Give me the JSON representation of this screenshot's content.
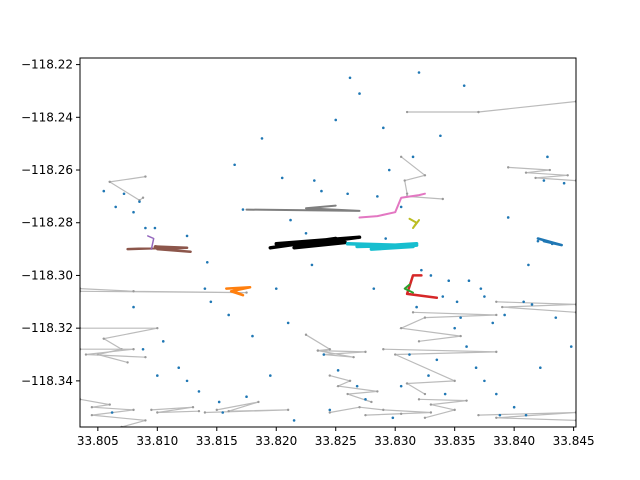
{
  "chart_data": {
    "type": "scatter",
    "title": "",
    "xlabel": "",
    "ylabel": "",
    "xlim": [
      33.8035,
      33.8452
    ],
    "ylim": [
      -118.3575,
      -118.2175
    ],
    "xticks": [
      33.805,
      33.81,
      33.815,
      33.82,
      33.825,
      33.83,
      33.835,
      33.84,
      33.845
    ],
    "xtick_labels": [
      "33.805",
      "33.810",
      "33.815",
      "33.820",
      "33.825",
      "33.830",
      "33.835",
      "33.840",
      "33.845"
    ],
    "yticks": [
      -118.22,
      -118.24,
      -118.26,
      -118.28,
      -118.3,
      -118.32,
      -118.34
    ],
    "ytick_labels": [
      "−118.22",
      "−118.24",
      "−118.26",
      "−118.28",
      "−118.30",
      "−118.32",
      "−118.34"
    ],
    "grid": false,
    "points": {
      "color": "#1f77b4",
      "x": [
        33.8055,
        33.8065,
        33.8072,
        33.808,
        33.8085,
        33.809,
        33.811,
        33.8125,
        33.814,
        33.8145,
        33.816,
        33.818,
        33.82,
        33.821,
        33.823,
        33.824,
        33.825,
        33.8262,
        33.827,
        33.8285,
        33.8295,
        33.8305,
        33.8315,
        33.8322,
        33.833,
        33.834,
        33.835,
        33.836,
        33.8368,
        33.8375,
        33.8385,
        33.84,
        33.841,
        33.842,
        33.8432,
        33.8442,
        33.808,
        33.8105,
        33.8125,
        33.8155,
        33.8175,
        33.8195,
        33.8215,
        33.8245,
        33.8275,
        33.8305,
        33.8335,
        33.8355,
        33.8375,
        33.8395,
        33.8425,
        33.81,
        33.8135,
        33.8165,
        33.8205,
        33.8225,
        33.826,
        33.829,
        33.832,
        33.8345,
        33.8372,
        33.8415,
        33.8435,
        33.8098,
        33.8142,
        33.8188,
        33.8238,
        33.8282,
        33.8312,
        33.8342,
        33.8362,
        33.8388,
        33.8408,
        33.8448,
        33.8062,
        33.8118,
        33.8172,
        33.8232,
        33.8268,
        33.8298,
        33.8328,
        33.8352,
        33.8382,
        33.8412,
        33.8428,
        33.8088,
        33.8152,
        33.8212,
        33.8252,
        33.8292,
        33.8318,
        33.8338,
        33.8358,
        33.8392,
        33.8422
      ],
      "y": [
        -118.268,
        -118.274,
        -118.269,
        -118.276,
        -118.272,
        -118.282,
        -118.29,
        -118.285,
        -118.305,
        -118.31,
        -118.315,
        -118.323,
        -118.305,
        -118.318,
        -118.296,
        -118.33,
        -118.241,
        -118.225,
        -118.231,
        -118.27,
        -118.26,
        -118.274,
        -118.255,
        -118.298,
        -118.3,
        -118.308,
        -118.32,
        -118.327,
        -118.335,
        -118.34,
        -118.345,
        -118.35,
        -118.353,
        -118.287,
        -118.288,
        -118.265,
        -118.312,
        -118.325,
        -118.34,
        -118.352,
        -118.346,
        -118.338,
        -118.355,
        -118.351,
        -118.347,
        -118.342,
        -118.332,
        -118.316,
        -118.308,
        -118.278,
        -118.264,
        -118.338,
        -118.344,
        -118.258,
        -118.263,
        -118.284,
        -118.269,
        -118.244,
        -118.223,
        -118.302,
        -118.305,
        -118.311,
        -118.316,
        -118.282,
        -118.295,
        -118.248,
        -118.268,
        -118.305,
        -118.33,
        -118.345,
        -118.302,
        -118.353,
        -118.31,
        -118.327,
        -118.352,
        -118.335,
        -118.275,
        -118.264,
        -118.342,
        -118.354,
        -118.338,
        -118.31,
        -118.318,
        -118.296,
        -118.255,
        -118.328,
        -118.348,
        -118.279,
        -118.336,
        -118.286,
        -118.312,
        -118.247,
        -118.228,
        -118.315,
        -118.335
      ]
    },
    "gray_lines": {
      "color": "#bbbbbb",
      "paths": [
        {
          "x": [
            33.809,
            33.806,
            33.8085,
            33.8088
          ],
          "y": [
            -118.2625,
            -118.2645,
            -118.2715,
            -118.2705
          ]
        },
        {
          "x": [
            33.8035,
            33.8175,
            33.808,
            33.8035
          ],
          "y": [
            -118.306,
            -118.3065,
            -118.306,
            -118.305
          ]
        },
        {
          "x": [
            33.8035,
            33.81,
            33.8055,
            33.807,
            33.805,
            33.8075
          ],
          "y": [
            -118.32,
            -118.32,
            -118.324,
            -118.328,
            -118.33,
            -118.333
          ]
        },
        {
          "x": [
            33.8035,
            33.808,
            33.804,
            33.809
          ],
          "y": [
            -118.328,
            -118.328,
            -118.33,
            -118.331
          ]
        },
        {
          "x": [
            33.8035,
            33.806,
            33.8045,
            33.808,
            33.8045,
            33.809,
            33.807
          ],
          "y": [
            -118.347,
            -118.349,
            -118.35,
            -118.351,
            -118.353,
            -118.355,
            -118.3575
          ]
        },
        {
          "x": [
            33.8095,
            33.813,
            33.81,
            33.8135
          ],
          "y": [
            -118.351,
            -118.35,
            -118.352,
            -118.3515
          ]
        },
        {
          "x": [
            33.814,
            33.821,
            33.816,
            33.8185,
            33.815
          ],
          "y": [
            -118.352,
            -118.351,
            -118.3515,
            -118.348,
            -118.351
          ]
        },
        {
          "x": [
            33.8225,
            33.8245,
            33.8235,
            33.8275,
            33.824,
            33.8265,
            33.8235
          ],
          "y": [
            -118.3225,
            -118.328,
            -118.3285,
            -118.329,
            -118.33,
            -118.331,
            -118.3285
          ]
        },
        {
          "x": [
            33.8245,
            33.8262,
            33.8252,
            33.8285,
            33.826,
            33.828
          ],
          "y": [
            -118.338,
            -118.34,
            -118.342,
            -118.344,
            -118.345,
            -118.348
          ]
        },
        {
          "x": [
            33.8245,
            33.827,
            33.829,
            33.833,
            33.8275,
            33.8305
          ],
          "y": [
            -118.352,
            -118.35,
            -118.351,
            -118.352,
            -118.353,
            -118.3525
          ]
        },
        {
          "x": [
            33.8305,
            33.8325,
            33.8308,
            33.831
          ],
          "y": [
            -118.255,
            -118.262,
            -118.264,
            -118.269
          ]
        },
        {
          "x": [
            33.831,
            33.834
          ],
          "y": [
            -118.27,
            -118.271
          ]
        },
        {
          "x": [
            33.8315,
            33.8385,
            33.8325,
            33.8305,
            33.8355,
            33.832
          ],
          "y": [
            -118.314,
            -118.315,
            -118.316,
            -118.32,
            -118.323,
            -118.325
          ]
        },
        {
          "x": [
            33.829,
            33.8385,
            33.83,
            33.835,
            33.831,
            33.8325
          ],
          "y": [
            -118.328,
            -118.329,
            -118.33,
            -118.34,
            -118.341,
            -118.345
          ]
        },
        {
          "x": [
            33.832,
            33.836,
            33.833,
            33.835,
            33.8325
          ],
          "y": [
            -118.347,
            -118.3475,
            -118.349,
            -118.351,
            -118.354
          ]
        },
        {
          "x": [
            33.831,
            33.837
          ],
          "y": [
            -118.238,
            -118.238
          ]
        },
        {
          "x": [
            33.837,
            33.8452
          ],
          "y": [
            -118.238,
            -118.234
          ]
        },
        {
          "x": [
            33.8395,
            33.843,
            33.841,
            33.8445,
            33.8418,
            33.8452
          ],
          "y": [
            -118.259,
            -118.26,
            -118.261,
            -118.262,
            -118.263,
            -118.264
          ]
        },
        {
          "x": [
            33.8385,
            33.8452,
            33.839,
            33.8452
          ],
          "y": [
            -118.31,
            -118.311,
            -118.312,
            -118.314
          ]
        },
        {
          "x": [
            33.837,
            33.8452,
            33.8385,
            33.8452
          ],
          "y": [
            -118.353,
            -118.352,
            -118.354,
            -118.355
          ]
        }
      ]
    },
    "series": [
      {
        "color": "#000000",
        "width": 3.5,
        "x": [
          33.8195,
          33.825,
          33.822,
          33.827,
          33.82,
          33.824,
          33.8215,
          33.8258
        ],
        "y": [
          -118.2895,
          -118.286,
          -118.2885,
          -118.2855,
          -118.288,
          -118.287,
          -118.2895,
          -118.2875
        ]
      },
      {
        "color": "#17becf",
        "width": 3.5,
        "x": [
          33.826,
          33.83,
          33.8318,
          33.829,
          33.8315,
          33.828,
          33.8318,
          33.8268
        ],
        "y": [
          -118.288,
          -118.2885,
          -118.288,
          -118.2895,
          -118.289,
          -118.29,
          -118.2885,
          -118.289
        ]
      },
      {
        "color": "#7f7f7f",
        "width": 2.0,
        "x": [
          33.8175,
          33.827,
          33.8225,
          33.825
        ],
        "y": [
          -118.275,
          -118.2755,
          -118.2745,
          -118.2735
        ]
      },
      {
        "color": "#e377c2",
        "width": 2.0,
        "x": [
          33.827,
          33.8285,
          33.83,
          33.8305,
          33.832,
          33.8325
        ],
        "y": [
          -118.278,
          -118.2775,
          -118.276,
          -118.2705,
          -118.2695,
          -118.269
        ]
      },
      {
        "color": "#bcbd22",
        "width": 2.0,
        "x": [
          33.8312,
          33.8318,
          33.8315,
          33.832
        ],
        "y": [
          -118.2785,
          -118.28,
          -118.282,
          -118.279
        ]
      },
      {
        "color": "#8c564b",
        "width": 2.5,
        "x": [
          33.8075,
          33.811,
          33.8098,
          33.8125,
          33.81,
          33.8128
        ],
        "y": [
          -118.29,
          -118.2895,
          -118.289,
          -118.2895,
          -118.29,
          -118.291
        ]
      },
      {
        "color": "#9467bd",
        "width": 1.5,
        "x": [
          33.8095,
          33.8097,
          33.8092
        ],
        "y": [
          -118.29,
          -118.286,
          -118.285
        ]
      },
      {
        "color": "#ff7f0e",
        "width": 2.5,
        "x": [
          33.8158,
          33.8178,
          33.8162,
          33.8172,
          33.8167
        ],
        "y": [
          -118.305,
          -118.3045,
          -118.306,
          -118.3075,
          -118.3065
        ]
      },
      {
        "color": "#d62728",
        "width": 2.5,
        "x": [
          33.8322,
          33.8315,
          33.831,
          33.8335
        ],
        "y": [
          -118.3,
          -118.3,
          -118.307,
          -118.3085
        ]
      },
      {
        "color": "#2ca02c",
        "width": 2.0,
        "x": [
          33.8312,
          33.8308,
          33.8315
        ],
        "y": [
          -118.3035,
          -118.305,
          -118.3065
        ]
      },
      {
        "color": "#1f77b4",
        "width": 2.5,
        "x": [
          33.842,
          33.8432,
          33.844,
          33.8425
        ],
        "y": [
          -118.286,
          -118.2875,
          -118.2885,
          -118.287
        ]
      }
    ]
  }
}
